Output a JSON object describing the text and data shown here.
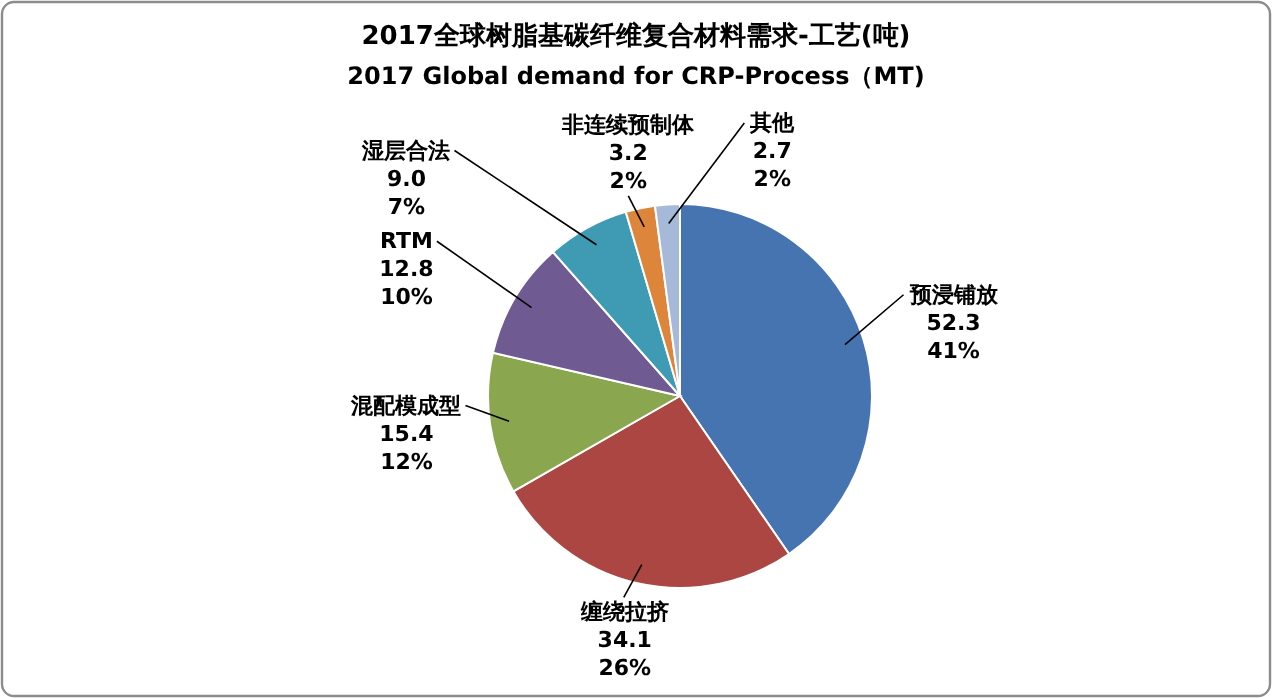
{
  "chart_data": {
    "type": "pie",
    "title": "2017全球树脂基碳纤维复合材料需求-工艺(吨)",
    "subtitle": "2017 Global demand for CRP-Process（MT)",
    "categories": [
      "预浸铺放",
      "缠绕拉挤",
      "混配模成型",
      "RTM",
      "湿层合法",
      "非连续预制体",
      "其他"
    ],
    "values": [
      52.3,
      34.1,
      15.4,
      12.8,
      9.0,
      3.2,
      2.7
    ],
    "value_labels": [
      "52.3 41%",
      "34.1 26%",
      "15.4 12%",
      "12.8 10%",
      "9.0 7%",
      "3.2 2%",
      "2.7 2%"
    ],
    "colors": [
      "#4674b0",
      "#ab4643",
      "#8aa64f",
      "#705a92",
      "#3f9bb3",
      "#dd853a",
      "#a7b9d8"
    ],
    "legend": false
  }
}
